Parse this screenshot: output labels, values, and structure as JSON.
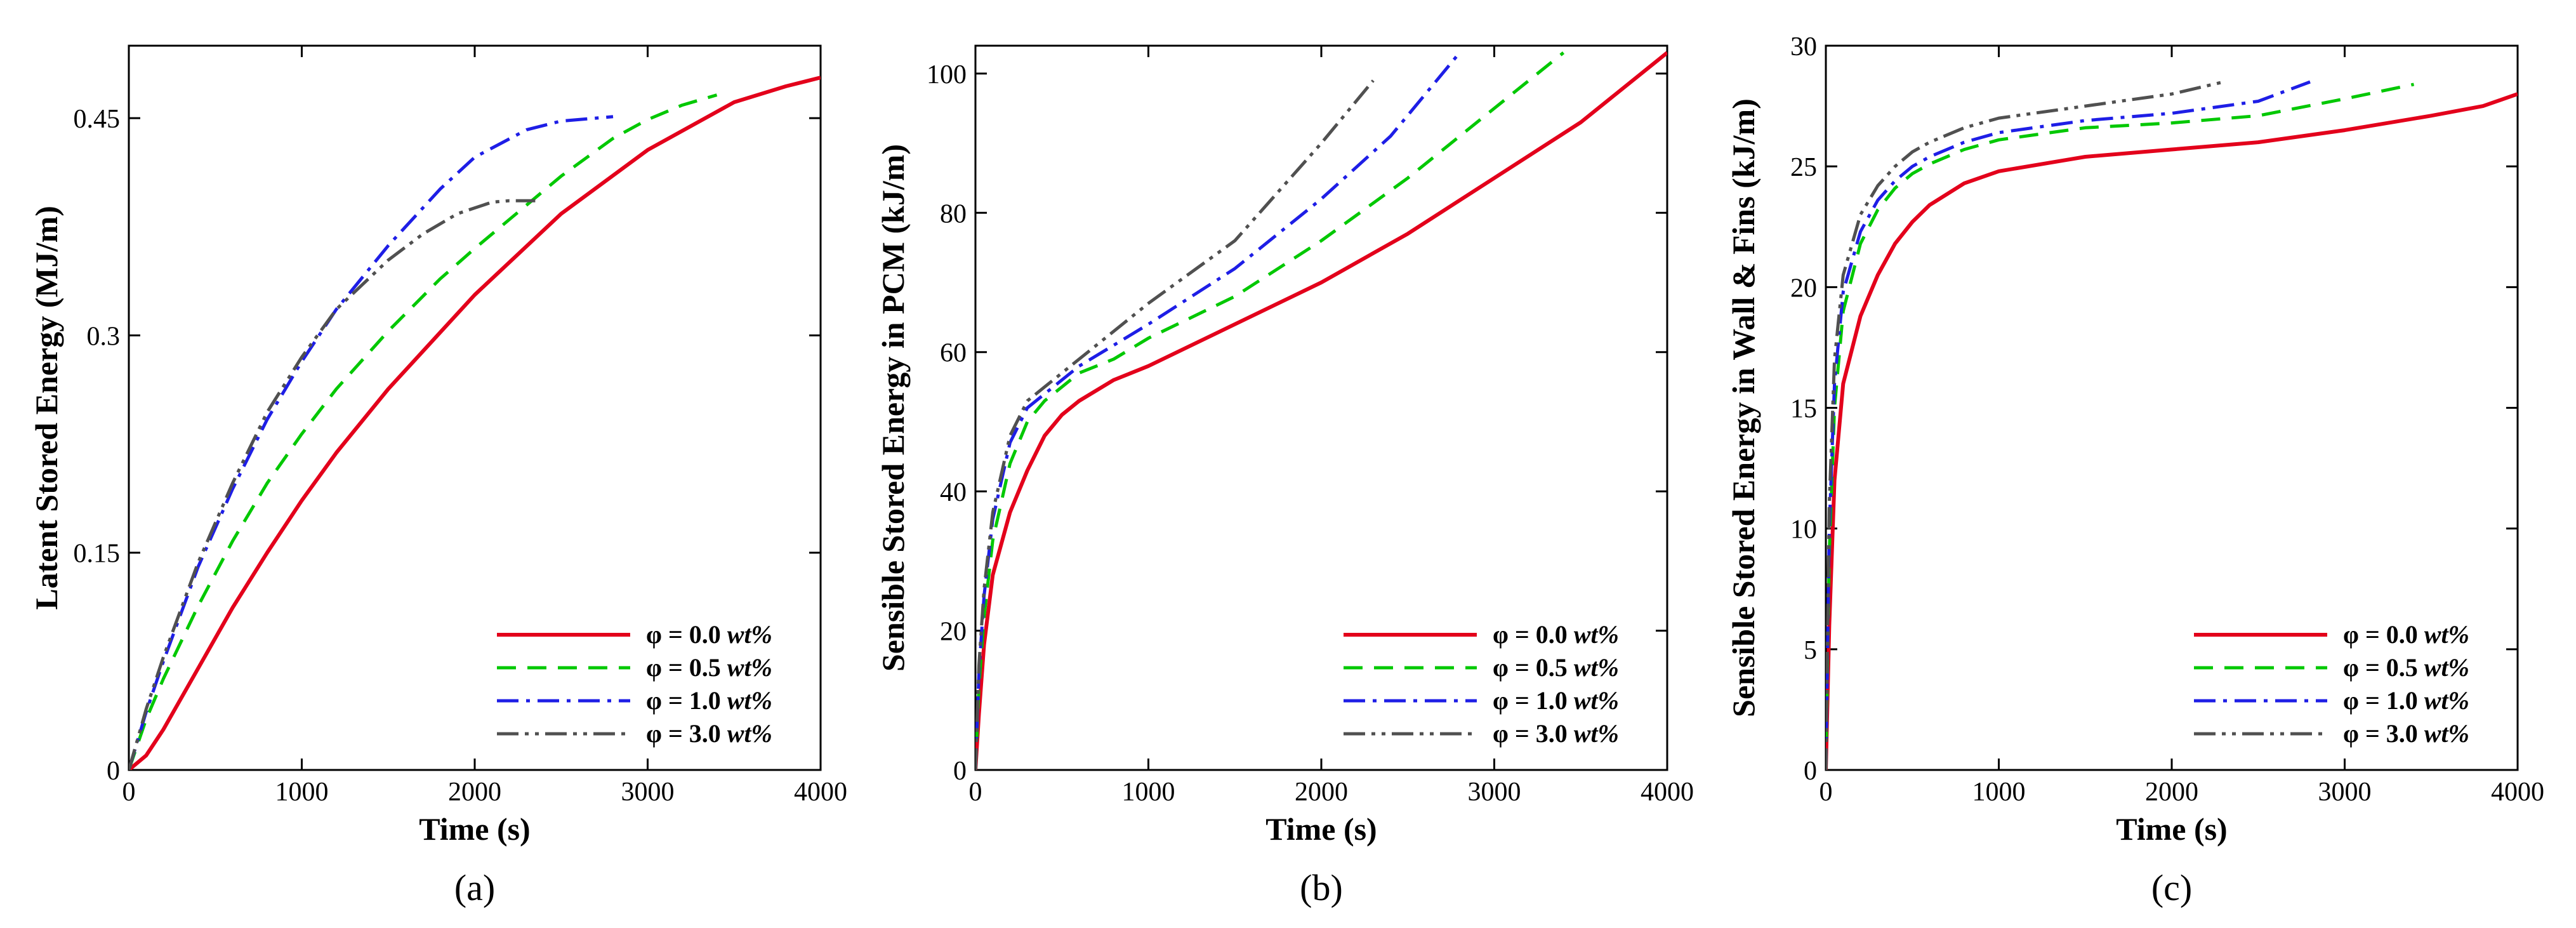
{
  "chart_data": [
    {
      "type": "line",
      "panel_label": "(a)",
      "xlabel": "Time (s)",
      "ylabel": "Latent Stored Energy (MJ/m)",
      "xlim": [
        0,
        4000
      ],
      "ylim": [
        0,
        0.5
      ],
      "xticks": [
        0,
        1000,
        2000,
        3000,
        4000
      ],
      "xtick_labels": [
        "0",
        "1000",
        "2000",
        "3000",
        "4000"
      ],
      "yticks": [
        0,
        0.15,
        0.3,
        0.45
      ],
      "ytick_labels": [
        "0",
        "0.15",
        "0.3",
        "0.45"
      ],
      "legend_position": "bottom-right",
      "series": [
        {
          "name": "φ = 0.0 wt%",
          "name_prefix": "φ = 0.0 ",
          "name_unit": "wt%",
          "color": "#e3001b",
          "dash": "solid",
          "x": [
            0,
            100,
            200,
            400,
            600,
            800,
            1000,
            1200,
            1500,
            1800,
            2000,
            2500,
            3000,
            3500,
            3800,
            4000
          ],
          "y": [
            0,
            0.01,
            0.028,
            0.07,
            0.112,
            0.15,
            0.186,
            0.219,
            0.263,
            0.302,
            0.328,
            0.384,
            0.428,
            0.461,
            0.472,
            0.478
          ]
        },
        {
          "name": "φ = 0.5 wt%",
          "name_prefix": "φ = 0.5 ",
          "name_unit": "wt%",
          "color": "#00c800",
          "dash": "dashed",
          "x": [
            0,
            100,
            200,
            400,
            600,
            800,
            1000,
            1200,
            1500,
            1800,
            2000,
            2500,
            2800,
            3000,
            3200,
            3400
          ],
          "y": [
            0,
            0.035,
            0.063,
            0.113,
            0.158,
            0.198,
            0.232,
            0.263,
            0.303,
            0.339,
            0.36,
            0.41,
            0.436,
            0.449,
            0.459,
            0.466
          ]
        },
        {
          "name": "φ = 1.0 wt%",
          "name_prefix": "φ = 1.0 ",
          "name_unit": "wt%",
          "color": "#1e1ee6",
          "dash": "dashdot",
          "x": [
            0,
            100,
            200,
            400,
            600,
            800,
            1000,
            1200,
            1500,
            1800,
            2000,
            2300,
            2500,
            2700,
            2800
          ],
          "y": [
            0,
            0.04,
            0.075,
            0.14,
            0.194,
            0.242,
            0.282,
            0.318,
            0.362,
            0.401,
            0.423,
            0.442,
            0.448,
            0.45,
            0.451
          ]
        },
        {
          "name": "φ = 3.0 wt%",
          "name_prefix": "φ = 3.0 ",
          "name_unit": "wt%",
          "color": "#505050",
          "dash": "dashdotdot",
          "x": [
            0,
            100,
            200,
            400,
            600,
            800,
            1000,
            1200,
            1500,
            1700,
            1900,
            2100,
            2200,
            2350
          ],
          "y": [
            0,
            0.042,
            0.078,
            0.143,
            0.198,
            0.247,
            0.285,
            0.318,
            0.352,
            0.37,
            0.384,
            0.392,
            0.393,
            0.393
          ]
        }
      ]
    },
    {
      "type": "line",
      "panel_label": "(b)",
      "xlabel": "Time (s)",
      "ylabel": "Sensible Stored Energy in PCM (kJ/m)",
      "xlim": [
        0,
        4000
      ],
      "ylim": [
        0,
        104
      ],
      "xticks": [
        0,
        1000,
        2000,
        3000,
        4000
      ],
      "xtick_labels": [
        "0",
        "1000",
        "2000",
        "3000",
        "4000"
      ],
      "yticks": [
        0,
        20,
        40,
        60,
        80,
        100
      ],
      "ytick_labels": [
        "0",
        "20",
        "40",
        "60",
        "80",
        "100"
      ],
      "legend_position": "bottom-right",
      "series": [
        {
          "name": "φ = 0.0 wt%",
          "name_prefix": "φ = 0.0 ",
          "name_unit": "wt%",
          "color": "#e3001b",
          "dash": "solid",
          "x": [
            0,
            20,
            50,
            100,
            200,
            300,
            400,
            500,
            600,
            800,
            1000,
            1500,
            2000,
            2500,
            3000,
            3500,
            4000
          ],
          "y": [
            0,
            8,
            18,
            28,
            37,
            43,
            48,
            51,
            53,
            56,
            58,
            64,
            70,
            77,
            85,
            93,
            103
          ]
        },
        {
          "name": "φ = 0.5 wt%",
          "name_prefix": "φ = 0.5 ",
          "name_unit": "wt%",
          "color": "#00c800",
          "dash": "dashed",
          "x": [
            0,
            20,
            50,
            100,
            200,
            300,
            400,
            500,
            600,
            800,
            1000,
            1500,
            2000,
            2500,
            3000,
            3400
          ],
          "y": [
            0,
            12,
            22,
            33,
            44,
            50,
            53,
            55,
            57,
            59,
            62,
            68,
            76,
            85,
            95,
            103
          ]
        },
        {
          "name": "φ = 1.0 wt%",
          "name_prefix": "φ = 1.0 ",
          "name_unit": "wt%",
          "color": "#1e1ee6",
          "dash": "dashdot",
          "x": [
            0,
            20,
            50,
            100,
            200,
            300,
            400,
            500,
            600,
            800,
            1000,
            1500,
            2000,
            2400,
            2800
          ],
          "y": [
            0,
            14,
            25,
            36,
            47,
            52,
            54,
            56,
            58,
            61,
            64,
            72,
            82,
            91,
            103
          ]
        },
        {
          "name": "φ = 3.0 wt%",
          "name_prefix": "φ = 3.0 ",
          "name_unit": "wt%",
          "color": "#505050",
          "dash": "dashdotdot",
          "x": [
            0,
            20,
            50,
            100,
            200,
            300,
            400,
            500,
            600,
            800,
            1000,
            1500,
            2000,
            2300
          ],
          "y": [
            0,
            15,
            26,
            37,
            48,
            53,
            55,
            57,
            59,
            63,
            67,
            76,
            90,
            99
          ]
        }
      ]
    },
    {
      "type": "line",
      "panel_label": "(c)",
      "xlabel": "Time (s)",
      "ylabel": "Sensible Stored Energy in Wall & Fins (kJ/m)",
      "xlim": [
        0,
        4000
      ],
      "ylim": [
        0,
        30
      ],
      "xticks": [
        0,
        1000,
        2000,
        3000,
        4000
      ],
      "xtick_labels": [
        "0",
        "1000",
        "2000",
        "3000",
        "4000"
      ],
      "yticks": [
        0,
        5,
        10,
        15,
        20,
        25,
        30
      ],
      "ytick_labels": [
        "0",
        "5",
        "10",
        "15",
        "20",
        "25",
        "30"
      ],
      "legend_position": "bottom-right",
      "series": [
        {
          "name": "φ = 0.0 wt%",
          "name_prefix": "φ = 0.0 ",
          "name_unit": "wt%",
          "color": "#e3001b",
          "dash": "solid",
          "x": [
            0,
            20,
            50,
            100,
            200,
            300,
            400,
            500,
            600,
            800,
            1000,
            1500,
            2000,
            2500,
            3000,
            3500,
            3800,
            4000
          ],
          "y": [
            0,
            6,
            12,
            16,
            18.8,
            20.5,
            21.8,
            22.7,
            23.4,
            24.3,
            24.8,
            25.4,
            25.7,
            26,
            26.5,
            27.1,
            27.5,
            28
          ]
        },
        {
          "name": "φ = 0.5 wt%",
          "name_prefix": "φ = 0.5 ",
          "name_unit": "wt%",
          "color": "#00c800",
          "dash": "dashed",
          "x": [
            0,
            20,
            50,
            100,
            200,
            300,
            400,
            500,
            600,
            800,
            1000,
            1500,
            2000,
            2500,
            3000,
            3400
          ],
          "y": [
            0,
            9,
            15,
            19,
            21.8,
            23.2,
            24.1,
            24.7,
            25.1,
            25.7,
            26.1,
            26.6,
            26.8,
            27.1,
            27.8,
            28.4
          ]
        },
        {
          "name": "φ = 1.0 wt%",
          "name_prefix": "φ = 1.0 ",
          "name_unit": "wt%",
          "color": "#1e1ee6",
          "dash": "dashdot",
          "x": [
            0,
            20,
            50,
            100,
            200,
            300,
            400,
            500,
            600,
            800,
            1000,
            1500,
            2000,
            2500,
            2800
          ],
          "y": [
            0,
            10,
            16,
            19.8,
            22.3,
            23.6,
            24.4,
            25,
            25.4,
            26,
            26.4,
            26.9,
            27.2,
            27.7,
            28.5
          ]
        },
        {
          "name": "φ = 3.0 wt%",
          "name_prefix": "φ = 3.0 ",
          "name_unit": "wt%",
          "color": "#505050",
          "dash": "dashdotdot",
          "x": [
            0,
            20,
            50,
            100,
            200,
            300,
            400,
            500,
            600,
            800,
            1000,
            1500,
            2000,
            2300
          ],
          "y": [
            0,
            11,
            17,
            20.5,
            23,
            24.2,
            25,
            25.6,
            26,
            26.6,
            27,
            27.5,
            28,
            28.5
          ]
        }
      ]
    }
  ]
}
